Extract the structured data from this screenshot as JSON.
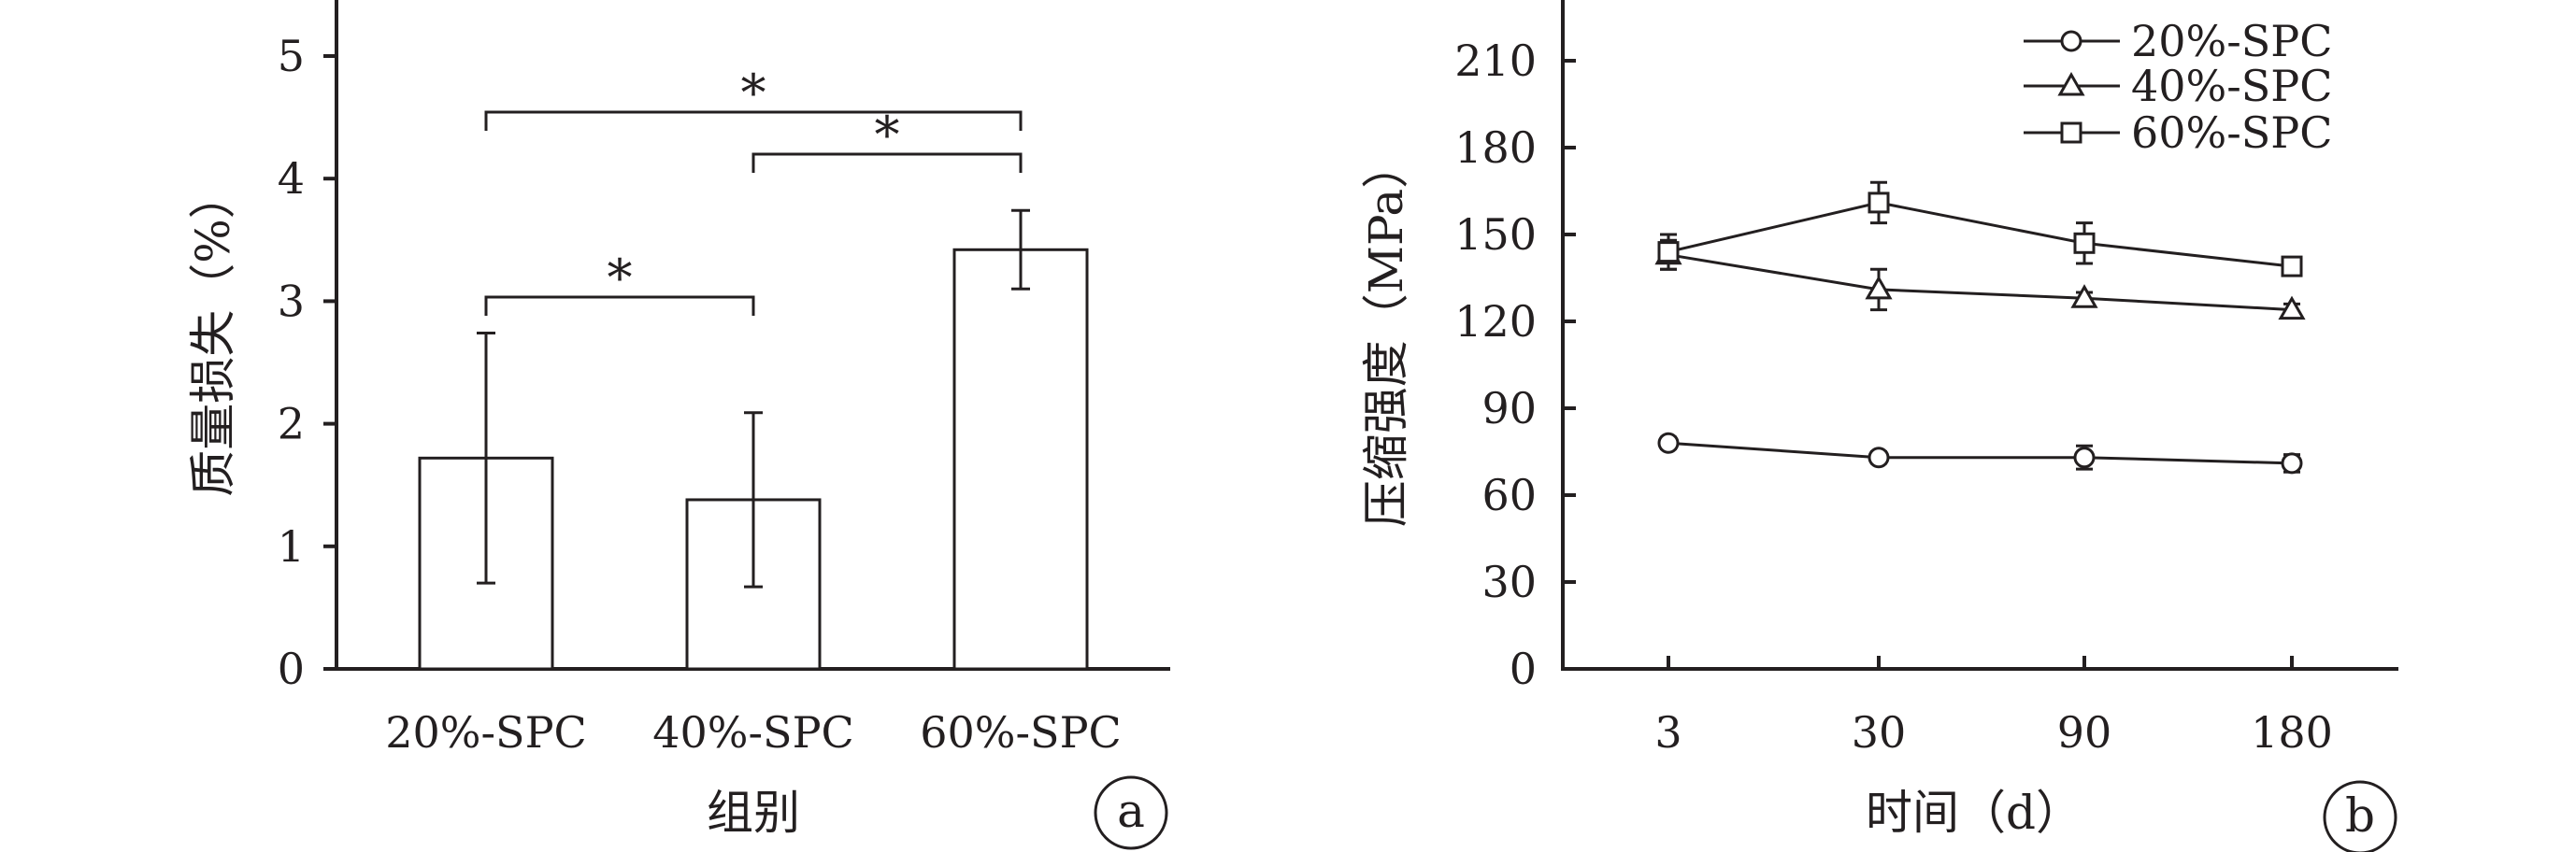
{
  "chart_data": [
    {
      "type": "bar",
      "panel_label": "a",
      "title": "",
      "xlabel": "组别",
      "ylabel": "质量损失（%）",
      "ylim": [
        0,
        5
      ],
      "yticks": [
        "0",
        "1",
        "2",
        "3",
        "4",
        "5"
      ],
      "categories": [
        "20%-SPC",
        "40%-SPC",
        "60%-SPC"
      ],
      "values": [
        1.72,
        1.38,
        3.42
      ],
      "errors": [
        1.02,
        0.71,
        0.32
      ],
      "significance": [
        {
          "pair": [
            0,
            1
          ],
          "label": "*"
        },
        {
          "pair": [
            1,
            2
          ],
          "label": "*"
        },
        {
          "pair": [
            0,
            2
          ],
          "label": "*"
        }
      ],
      "grid": false
    },
    {
      "type": "line",
      "panel_label": "b",
      "title": "",
      "xlabel": "时间（d）",
      "ylabel": "压缩强度（MPa）",
      "ylim": [
        0,
        240
      ],
      "yticks": [
        "0",
        "30",
        "60",
        "90",
        "120",
        "150",
        "180",
        "210"
      ],
      "x": [
        "3",
        "30",
        "90",
        "180"
      ],
      "series": [
        {
          "name": "20%-SPC",
          "marker": "circle",
          "values": [
            78,
            73,
            73,
            71
          ],
          "errors": [
            2,
            2,
            4,
            3
          ]
        },
        {
          "name": "40%-SPC",
          "marker": "triangle",
          "values": [
            143,
            131,
            128,
            124
          ],
          "errors": [
            5,
            7,
            2,
            2
          ]
        },
        {
          "name": "60%-SPC",
          "marker": "square",
          "values": [
            144,
            161,
            147,
            139
          ],
          "errors": [
            6,
            7,
            7,
            3
          ]
        }
      ],
      "legend_position": "top-right",
      "grid": false
    }
  ]
}
